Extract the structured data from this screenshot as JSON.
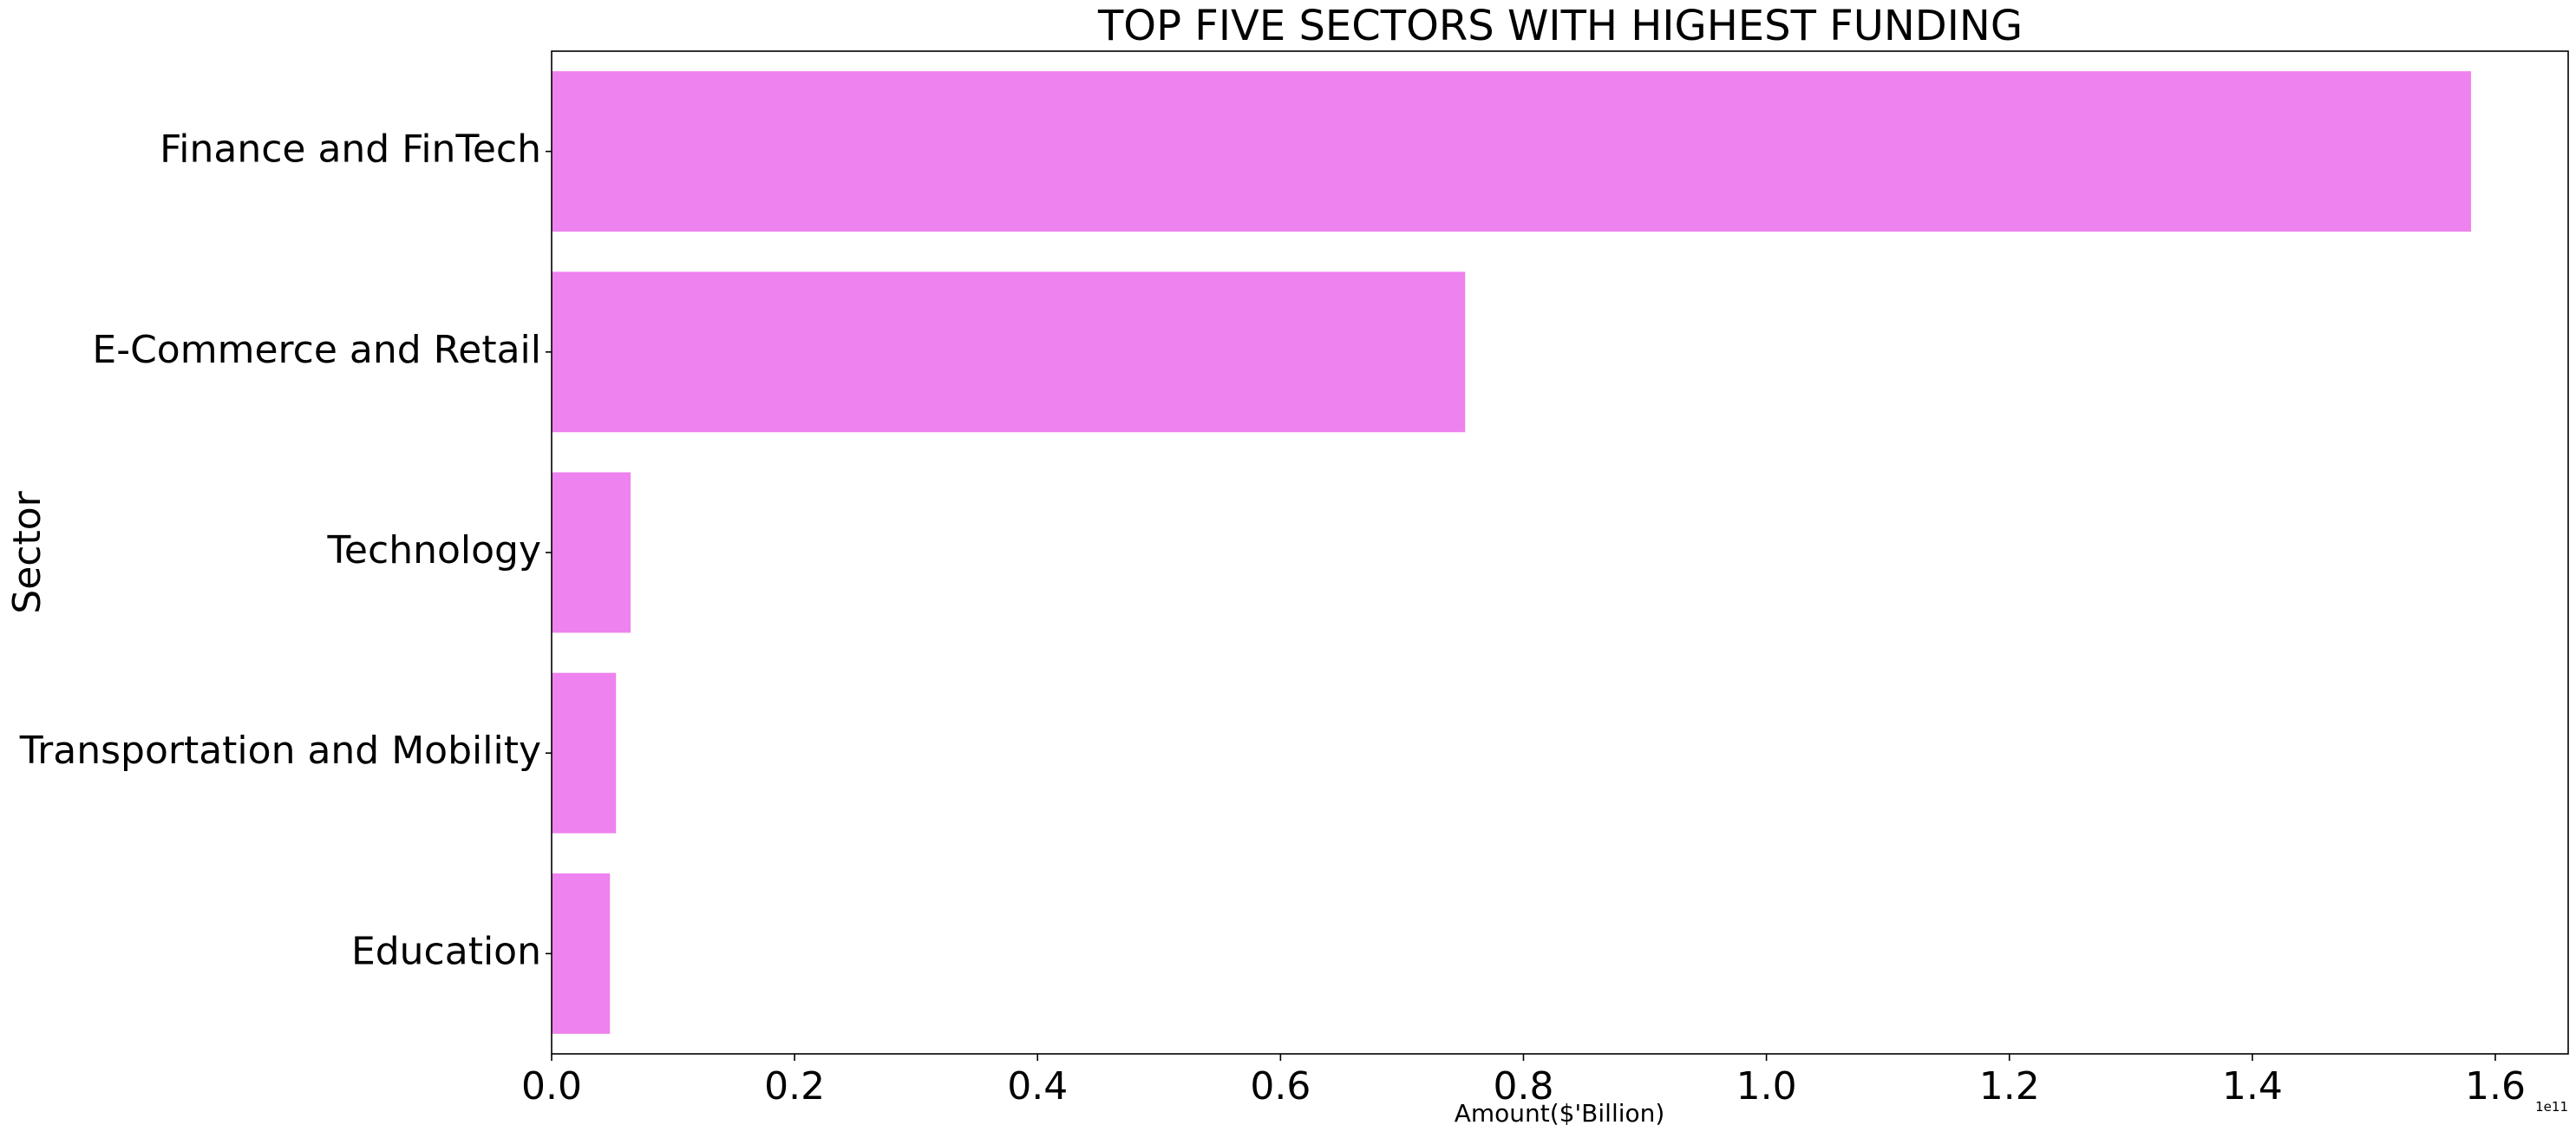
{
  "chart_data": {
    "type": "bar",
    "orientation": "horizontal",
    "title": "TOP FIVE SECTORS WITH HIGHEST FUNDING",
    "xlabel": "Amount($'Billion)",
    "ylabel": "Sector",
    "offset_label": "1e11",
    "categories": [
      "Finance and FinTech",
      "E-Commerce and Retail",
      "Technology",
      "Transportation and Mobility",
      "Education"
    ],
    "values": [
      158000000000,
      75200000000,
      6500000000,
      5300000000,
      4800000000
    ],
    "xlim": [
      0,
      166000000000
    ],
    "x_ticks": [
      0,
      20000000000,
      40000000000,
      60000000000,
      80000000000,
      100000000000,
      120000000000,
      140000000000,
      160000000000
    ],
    "x_tick_labels": [
      "0.0",
      "0.2",
      "0.4",
      "0.6",
      "0.8",
      "1.0",
      "1.2",
      "1.4",
      "1.6"
    ],
    "bar_color": "#EE82EE",
    "grid": false,
    "legend": "none"
  }
}
